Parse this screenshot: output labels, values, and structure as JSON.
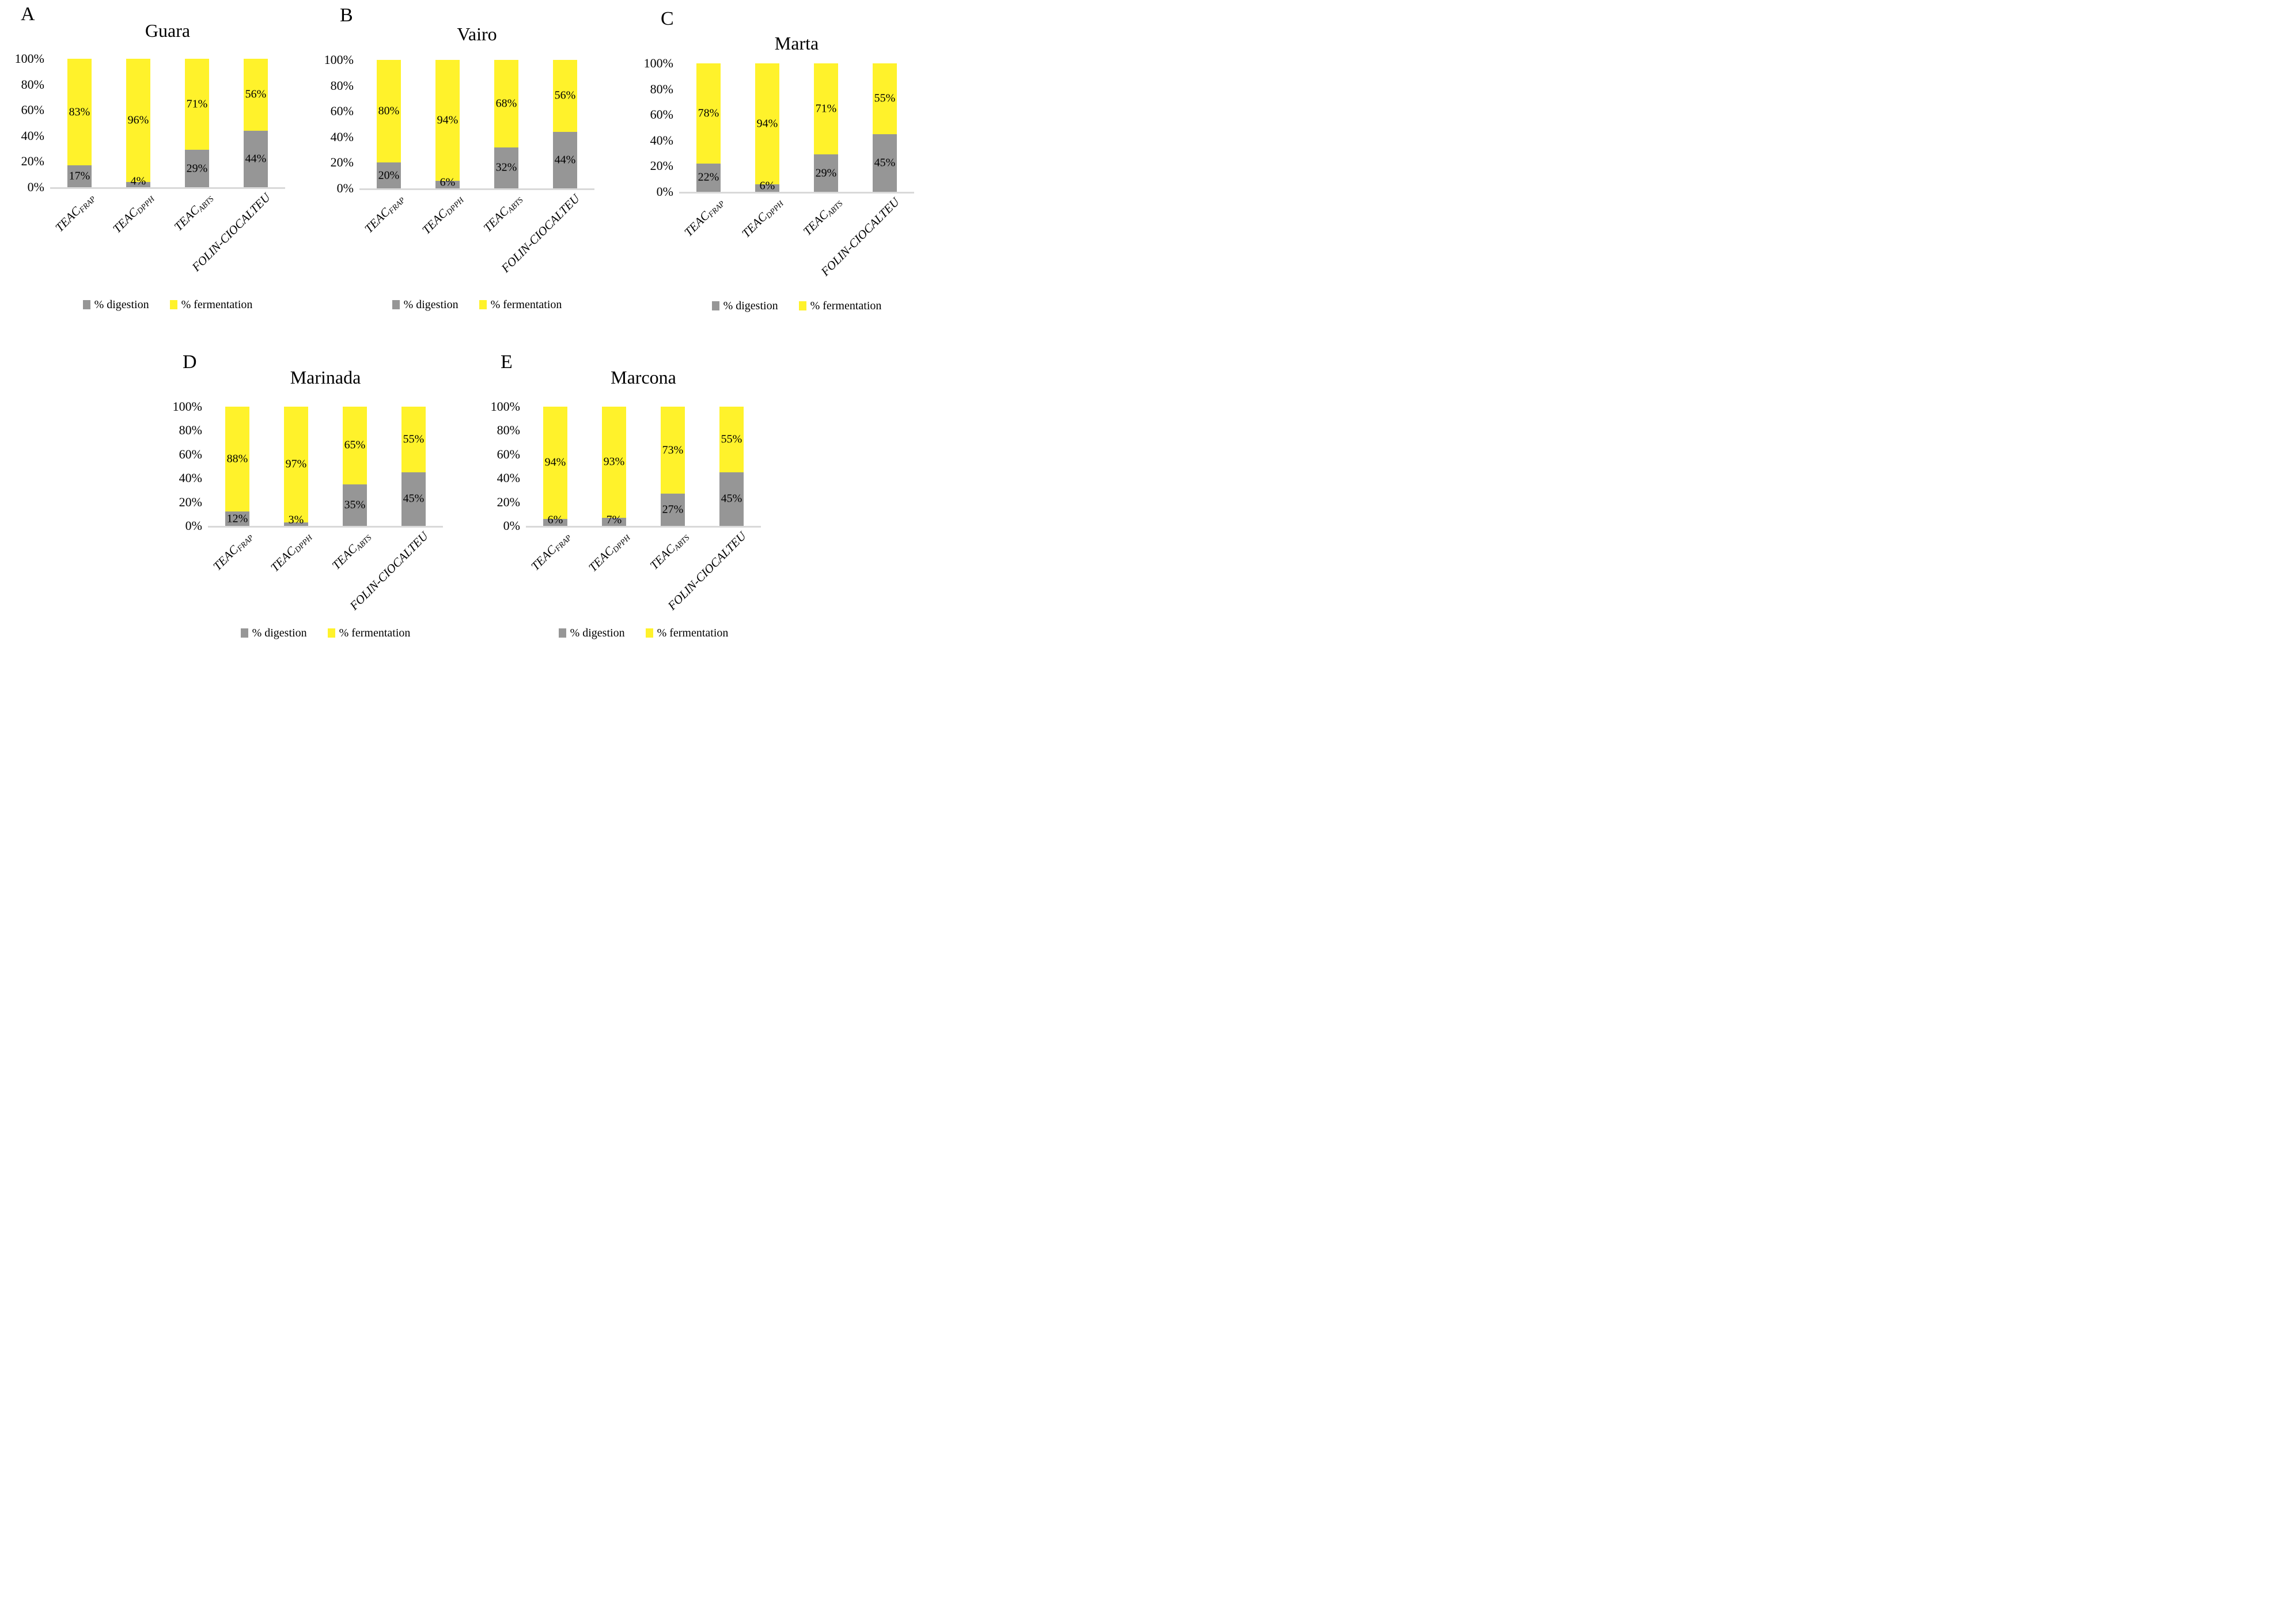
{
  "colors": {
    "digestion": "#969696",
    "fermentation": "#FFF22B",
    "baseline": "#D9D9D9",
    "text": "#000000"
  },
  "legend": {
    "digestion_label": "% digestion",
    "fermentation_label": "% fermentation"
  },
  "chart_data": [
    {
      "type": "bar",
      "stacked": true,
      "panel_letter": "A",
      "title": "Guara",
      "categories": [
        {
          "label": "TEAC",
          "sub": "FRAP"
        },
        {
          "label": "TEAC",
          "sub": "DPPH"
        },
        {
          "label": "TEAC",
          "sub": "ABTS"
        },
        {
          "label": "FOLIN-CIOCALTEU",
          "sub": ""
        }
      ],
      "series": [
        {
          "name": "% digestion",
          "values": [
            17,
            4,
            29,
            44
          ]
        },
        {
          "name": "% fermentation",
          "values": [
            83,
            96,
            71,
            56
          ]
        }
      ],
      "data_labels": {
        "digestion": [
          "17%",
          "4%",
          "29%",
          "44%"
        ],
        "fermentation": [
          "83%",
          "96%",
          "71%",
          "56%"
        ]
      },
      "yticks": [
        "0%",
        "20%",
        "40%",
        "60%",
        "80%",
        "100%"
      ],
      "ylim": [
        0,
        100
      ],
      "grid": false,
      "legend_position": "bottom"
    },
    {
      "type": "bar",
      "stacked": true,
      "panel_letter": "B",
      "title": "Vairo",
      "categories": [
        {
          "label": "TEAC",
          "sub": "FRAP"
        },
        {
          "label": "TEAC",
          "sub": "DPPH"
        },
        {
          "label": "TEAC",
          "sub": "ABTS"
        },
        {
          "label": "FOLIN-CIOCALTEU",
          "sub": ""
        }
      ],
      "series": [
        {
          "name": "% digestion",
          "values": [
            20,
            6,
            32,
            44
          ]
        },
        {
          "name": "% fermentation",
          "values": [
            80,
            94,
            68,
            56
          ]
        }
      ],
      "data_labels": {
        "digestion": [
          "20%",
          "6%",
          "32%",
          "44%"
        ],
        "fermentation": [
          "80%",
          "94%",
          "68%",
          "56%"
        ]
      },
      "yticks": [
        "0%",
        "20%",
        "40%",
        "60%",
        "80%",
        "100%"
      ],
      "ylim": [
        0,
        100
      ],
      "grid": false,
      "legend_position": "bottom"
    },
    {
      "type": "bar",
      "stacked": true,
      "panel_letter": "C",
      "title": "Marta",
      "categories": [
        {
          "label": "TEAC",
          "sub": "FRAP"
        },
        {
          "label": "TEAC",
          "sub": "DPPH"
        },
        {
          "label": "TEAC",
          "sub": "ABTS"
        },
        {
          "label": "FOLIN-CIOCALTEU",
          "sub": ""
        }
      ],
      "series": [
        {
          "name": "% digestion",
          "values": [
            22,
            6,
            29,
            45
          ]
        },
        {
          "name": "% fermentation",
          "values": [
            78,
            94,
            71,
            55
          ]
        }
      ],
      "data_labels": {
        "digestion": [
          "22%",
          "6%",
          "29%",
          "45%"
        ],
        "fermentation": [
          "78%",
          "94%",
          "71%",
          "55%"
        ]
      },
      "yticks": [
        "0%",
        "20%",
        "40%",
        "60%",
        "80%",
        "100%"
      ],
      "ylim": [
        0,
        100
      ],
      "grid": false,
      "legend_position": "bottom"
    },
    {
      "type": "bar",
      "stacked": true,
      "panel_letter": "D",
      "title": "Marinada",
      "categories": [
        {
          "label": "TEAC",
          "sub": "FRAP"
        },
        {
          "label": "TEAC",
          "sub": "DPPH"
        },
        {
          "label": "TEAC",
          "sub": "ABTS"
        },
        {
          "label": "FOLIN-CIOCALTEU",
          "sub": ""
        }
      ],
      "series": [
        {
          "name": "% digestion",
          "values": [
            12,
            3,
            35,
            45
          ]
        },
        {
          "name": "% fermentation",
          "values": [
            88,
            97,
            65,
            55
          ]
        }
      ],
      "data_labels": {
        "digestion": [
          "12%",
          "3%",
          "35%",
          "45%"
        ],
        "fermentation": [
          "88%",
          "97%",
          "65%",
          "55%"
        ]
      },
      "yticks": [
        "0%",
        "20%",
        "40%",
        "60%",
        "80%",
        "100%"
      ],
      "ylim": [
        0,
        100
      ],
      "grid": false,
      "legend_position": "bottom"
    },
    {
      "type": "bar",
      "stacked": true,
      "panel_letter": "E",
      "title": "Marcona",
      "categories": [
        {
          "label": "TEAC",
          "sub": "FRAP"
        },
        {
          "label": "TEAC",
          "sub": "DPPH"
        },
        {
          "label": "TEAC",
          "sub": "ABTS"
        },
        {
          "label": "FOLIN-CIOCALTEU",
          "sub": ""
        }
      ],
      "series": [
        {
          "name": "% digestion",
          "values": [
            6,
            7,
            27,
            45
          ]
        },
        {
          "name": "% fermentation",
          "values": [
            94,
            93,
            73,
            55
          ]
        }
      ],
      "data_labels": {
        "digestion": [
          "6%",
          "7%",
          "27%",
          "45%"
        ],
        "fermentation": [
          "94%",
          "93%",
          "73%",
          "55%"
        ]
      },
      "yticks": [
        "0%",
        "20%",
        "40%",
        "60%",
        "80%",
        "100%"
      ],
      "ylim": [
        0,
        100
      ],
      "grid": false,
      "legend_position": "bottom"
    }
  ]
}
